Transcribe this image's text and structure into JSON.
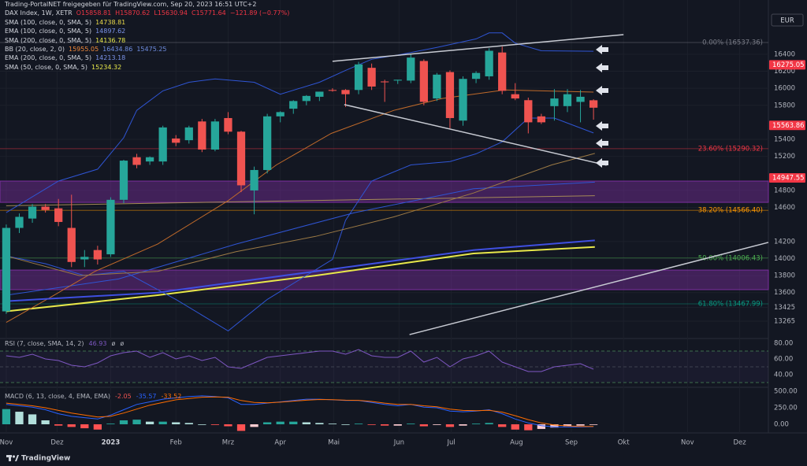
{
  "chart_data": {
    "type": "candlestick",
    "header": "Trading-PortalNET freigegeben für TradingView.com, Sep 20, 2023 16:51 UTC+2",
    "symbol": "DAX Index, 1W, XETR",
    "ohlc": [
      "O15858.81",
      "H15870.62",
      "L15630.94",
      "C15771.64"
    ],
    "change": "−121.89 (−0.77%)",
    "currency": "EUR",
    "brand": "TradingView",
    "up_color": "#26a69a",
    "down_color": "#ef5350",
    "open": [
      13380,
      14360,
      14470,
      14610,
      14590,
      14360,
      13990,
      14100,
      14050,
      14690,
      15190,
      15140,
      15140,
      15410,
      15390,
      15610,
      15280,
      15650,
      15490,
      14800,
      15040,
      15670,
      15760,
      15850,
      15900,
      15980,
      15980,
      15980,
      16240,
      16080,
      16090,
      16090,
      16320,
      15880,
      16190,
      15620,
      16110,
      16140,
      16420,
      15930,
      15860,
      15670,
      15790,
      15790,
      15840,
      15858.81
    ],
    "high": [
      14400,
      14530,
      14640,
      14640,
      14700,
      14750,
      14100,
      14150,
      14720,
      15160,
      15230,
      15200,
      15560,
      15450,
      15560,
      15640,
      15640,
      15720,
      15500,
      15080,
      15700,
      15730,
      15860,
      15920,
      15960,
      16000,
      15990,
      16310,
      16290,
      16100,
      16100,
      16400,
      16340,
      16180,
      16210,
      16140,
      16200,
      16470,
      16490,
      16060,
      15890,
      15700,
      15990,
      15990,
      15980,
      15870.62
    ],
    "low": [
      13350,
      14300,
      14420,
      14540,
      14380,
      13900,
      13900,
      13930,
      14020,
      14650,
      15060,
      15100,
      15100,
      15320,
      15350,
      15250,
      15260,
      15460,
      14780,
      14520,
      15000,
      15600,
      15700,
      15800,
      15850,
      15960,
      15780,
      15930,
      15980,
      15840,
      16050,
      16060,
      15800,
      15850,
      15530,
      15560,
      16060,
      16100,
      15930,
      15860,
      15470,
      15580,
      15620,
      15720,
      15600,
      15630.94
    ],
    "close": [
      14360,
      14490,
      14610,
      14570,
      14430,
      13960,
      14020,
      13990,
      14690,
      15150,
      15100,
      15190,
      15540,
      15360,
      15540,
      15280,
      15610,
      15490,
      14860,
      15040,
      15670,
      15720,
      15850,
      15910,
      15960,
      15970,
      15930,
      16280,
      16020,
      16070,
      16100,
      16360,
      15840,
      16160,
      15650,
      16110,
      16180,
      16440,
      15970,
      15880,
      15600,
      15600,
      15880,
      15930,
      15900,
      15771.64
    ],
    "xlim": [
      -0.48,
      58.4
    ],
    "xticks": [
      {
        "value": 0,
        "label": "Nov"
      },
      {
        "value": 3.9,
        "label": "Dez"
      },
      {
        "value": 8,
        "label": "2023"
      },
      {
        "value": 13,
        "label": "Feb"
      },
      {
        "value": 17,
        "label": "Mrz"
      },
      {
        "value": 21,
        "label": "Apr"
      },
      {
        "value": 25.1,
        "label": "Mai"
      },
      {
        "value": 30.1,
        "label": "Jun"
      },
      {
        "value": 34.1,
        "label": "Jul"
      },
      {
        "value": 39.1,
        "label": "Aug"
      },
      {
        "value": 43.3,
        "label": "Sep"
      },
      {
        "value": 47.3,
        "label": "Okt"
      },
      {
        "value": 52.2,
        "label": "Nov"
      },
      {
        "value": 56.2,
        "label": "Dez"
      }
    ],
    "ylim": [
      13080,
      16870
    ],
    "yticks": [
      16400,
      16200,
      16000,
      15800,
      15400,
      15200,
      14800,
      14600,
      14200,
      14000,
      13800,
      13600,
      13425,
      13265
    ],
    "grid": true,
    "price_labels": [
      {
        "value": 16275.05,
        "color": "#f23645"
      },
      {
        "value": 15563.86,
        "color": "#f23645"
      },
      {
        "value": 14947.55,
        "color": "#f23645"
      }
    ],
    "zones": [
      {
        "from": 14660,
        "to": 14910,
        "color": "#7b2f9e"
      },
      {
        "from": 13635,
        "to": 13865,
        "color": "#7b2f9e"
      }
    ],
    "fib": [
      {
        "value": 16537.36,
        "label": "0.00% (16537.36)",
        "color": "#787b86"
      },
      {
        "value": 15290.32,
        "label": "23.60% (15290.32)",
        "color": "#f23645"
      },
      {
        "value": 14566.4,
        "label": "38.20% (14566.40)",
        "color": "#ff9800"
      },
      {
        "value": 14006.43,
        "label": "50.00% (14006.43)",
        "color": "#4caf50"
      },
      {
        "value": 13467.99,
        "label": "61.80% (13467.99)",
        "color": "#089981"
      }
    ],
    "trendlines": [
      {
        "x": [
          25,
          47.3
        ],
        "values": [
          16317,
          16630
        ]
      },
      {
        "x": [
          25.9,
          46
        ],
        "values": [
          15808,
          15096
        ]
      },
      {
        "x": [
          30.9,
          58.4
        ],
        "values": [
          13107,
          14190
        ]
      }
    ],
    "indicators": [
      {
        "name": "SMA (100, close, 0, SMA, 5)",
        "last": 14738.81,
        "label_color": "#e8d84a",
        "color": "#a58a58",
        "width": 1,
        "x": [
          0,
          45.1
        ],
        "values": [
          14620,
          14738.81
        ]
      },
      {
        "name": "EMA (100, close, 0, SMA, 5)",
        "last": 14897.62,
        "label_color": "#7b93e8",
        "color": "#2f55d4",
        "width": 1,
        "x": [
          0,
          8.6,
          17.6,
          26.7,
          35.8,
          45.1
        ],
        "values": [
          13570,
          13760,
          14170,
          14540,
          14820,
          14897.62
        ]
      },
      {
        "name": "SMA (200, close, 0, SMA, 5)",
        "last": 14136.78,
        "label_color": "#e8e84a",
        "color": "#e8e84a",
        "width": 2,
        "x": [
          0,
          11.6,
          23.7,
          35.8,
          45.1
        ],
        "values": [
          13380,
          13570,
          13800,
          14060,
          14136.78
        ]
      },
      {
        "name": "BB (20, close, 2, 0)",
        "last": [
          15955.05,
          16434.86,
          15475.25
        ],
        "label_colors": [
          "#f0883a",
          "#6f8de0",
          "#6f8de0"
        ],
        "lines": [
          {
            "color": "#c06a2a",
            "x": [
              0,
              3.1,
              6.8,
              11.6,
              17,
              20.7,
              24.9,
              29.7,
              33.4,
              38.2,
              45
            ],
            "values": [
              13250,
              13520,
              13850,
              14170,
              14680,
              15100,
              15470,
              15740,
              15880,
              15980,
              15955.05
            ]
          },
          {
            "color": "#2f55d4",
            "x": [
              0,
              4,
              7,
              9,
              10,
              12,
              14,
              16,
              19,
              21,
              24,
              26,
              28,
              30,
              33,
              36,
              37,
              38,
              39,
              41,
              45
            ],
            "values": [
              14540,
              14910,
              15050,
              15420,
              15740,
              15970,
              16070,
              16110,
              16070,
              15930,
              16070,
              16210,
              16340,
              16390,
              16480,
              16580,
              16650,
              16650,
              16530,
              16440,
              16434.86
            ]
          },
          {
            "color": "#2f55d4",
            "x": [
              0,
              3,
              6,
              9,
              13,
              17,
              20,
              25,
              26,
              28,
              31,
              34,
              36,
              38,
              40,
              42,
              45
            ],
            "values": [
              14030,
              13940,
              13800,
              13850,
              13520,
              13150,
              13520,
              13990,
              14450,
              14910,
              15100,
              15140,
              15230,
              15370,
              15650,
              15650,
              15475.25
            ]
          }
        ]
      },
      {
        "name": "EMA (200, close, 0, SMA, 5)",
        "last": 14213.18,
        "label_color": "#7b93e8",
        "color": "#3f4fe0",
        "width": 2,
        "x": [
          0,
          11.6,
          23.7,
          35.8,
          45.1
        ],
        "values": [
          13500,
          13600,
          13850,
          14100,
          14213.18
        ]
      },
      {
        "name": "SMA (50, close, 0, SMA, 5)",
        "last": 15234.32,
        "label_color": "#e8e84a",
        "color": "#9c7a45",
        "width": 1,
        "x": [
          0,
          5.6,
          11.6,
          17.6,
          23.7,
          29.7,
          35.8,
          41.8,
          45.1
        ],
        "values": [
          14030,
          13800,
          13850,
          14080,
          14260,
          14490,
          14770,
          15100,
          15234.32
        ]
      }
    ],
    "rsi": {
      "label": "RSI (7, close, SMA, 14, 2)",
      "last": 46.93,
      "signs": [
        "ø",
        "ø"
      ],
      "color": "#7e57c2",
      "ylim": [
        26,
        84
      ],
      "yticks": [
        {
          "value": 80,
          "label": "80.00"
        },
        {
          "value": 60,
          "label": "60.00"
        },
        {
          "value": 40,
          "label": "40.00"
        }
      ],
      "levels": [
        70,
        50,
        30
      ],
      "values": [
        64,
        62,
        66,
        60,
        58,
        52,
        50,
        55,
        64,
        68,
        70,
        62,
        68,
        60,
        64,
        58,
        62,
        50,
        48,
        55,
        62,
        64,
        66,
        68,
        70,
        70,
        66,
        72,
        64,
        62,
        62,
        70,
        56,
        62,
        50,
        60,
        64,
        70,
        56,
        50,
        44,
        44,
        50,
        52,
        54,
        46.93
      ]
    },
    "macd": {
      "label": "MACD (6, 13, close, 4, EMA, EMA)",
      "last": [
        -2.05,
        -35.57,
        -33.52
      ],
      "label_colors": [
        "#ef5350",
        "#2962ff",
        "#ff6d00"
      ],
      "ylim": [
        -107,
        524
      ],
      "yticks": [
        {
          "value": 500,
          "label": "500.00"
        },
        {
          "value": 250,
          "label": "250.00"
        },
        {
          "value": 0,
          "label": "0.00"
        }
      ],
      "hist_colors": [
        "#26a69a",
        "#b2dfdb",
        "#ffcdd2",
        "#ff5252"
      ],
      "macd_color": "#2962ff",
      "signal_color": "#ff6d00",
      "histogram": [
        230,
        190,
        150,
        60,
        -20,
        -40,
        -60,
        -80,
        10,
        60,
        70,
        40,
        40,
        30,
        20,
        0,
        -10,
        -30,
        -100,
        -40,
        30,
        40,
        40,
        30,
        20,
        10,
        0,
        10,
        -5,
        -20,
        -20,
        10,
        -30,
        -10,
        -40,
        -20,
        10,
        20,
        -40,
        -80,
        -90,
        -70,
        -50,
        -30,
        -20,
        -2.05
      ],
      "macd": [
        300,
        280,
        260,
        220,
        160,
        120,
        100,
        80,
        140,
        220,
        300,
        340,
        380,
        400,
        420,
        430,
        420,
        400,
        300,
        300,
        320,
        340,
        360,
        380,
        380,
        370,
        360,
        360,
        330,
        300,
        280,
        300,
        260,
        250,
        200,
        190,
        200,
        220,
        160,
        80,
        20,
        -20,
        -40,
        -40,
        -40,
        -35.57
      ],
      "signal": [
        320,
        300,
        280,
        250,
        210,
        170,
        140,
        110,
        120,
        170,
        230,
        290,
        330,
        370,
        390,
        410,
        415,
        410,
        360,
        330,
        325,
        335,
        350,
        365,
        375,
        372,
        365,
        362,
        345,
        320,
        300,
        300,
        280,
        265,
        230,
        210,
        205,
        212,
        185,
        130,
        70,
        20,
        -10,
        -25,
        -33,
        -33.52
      ]
    }
  }
}
